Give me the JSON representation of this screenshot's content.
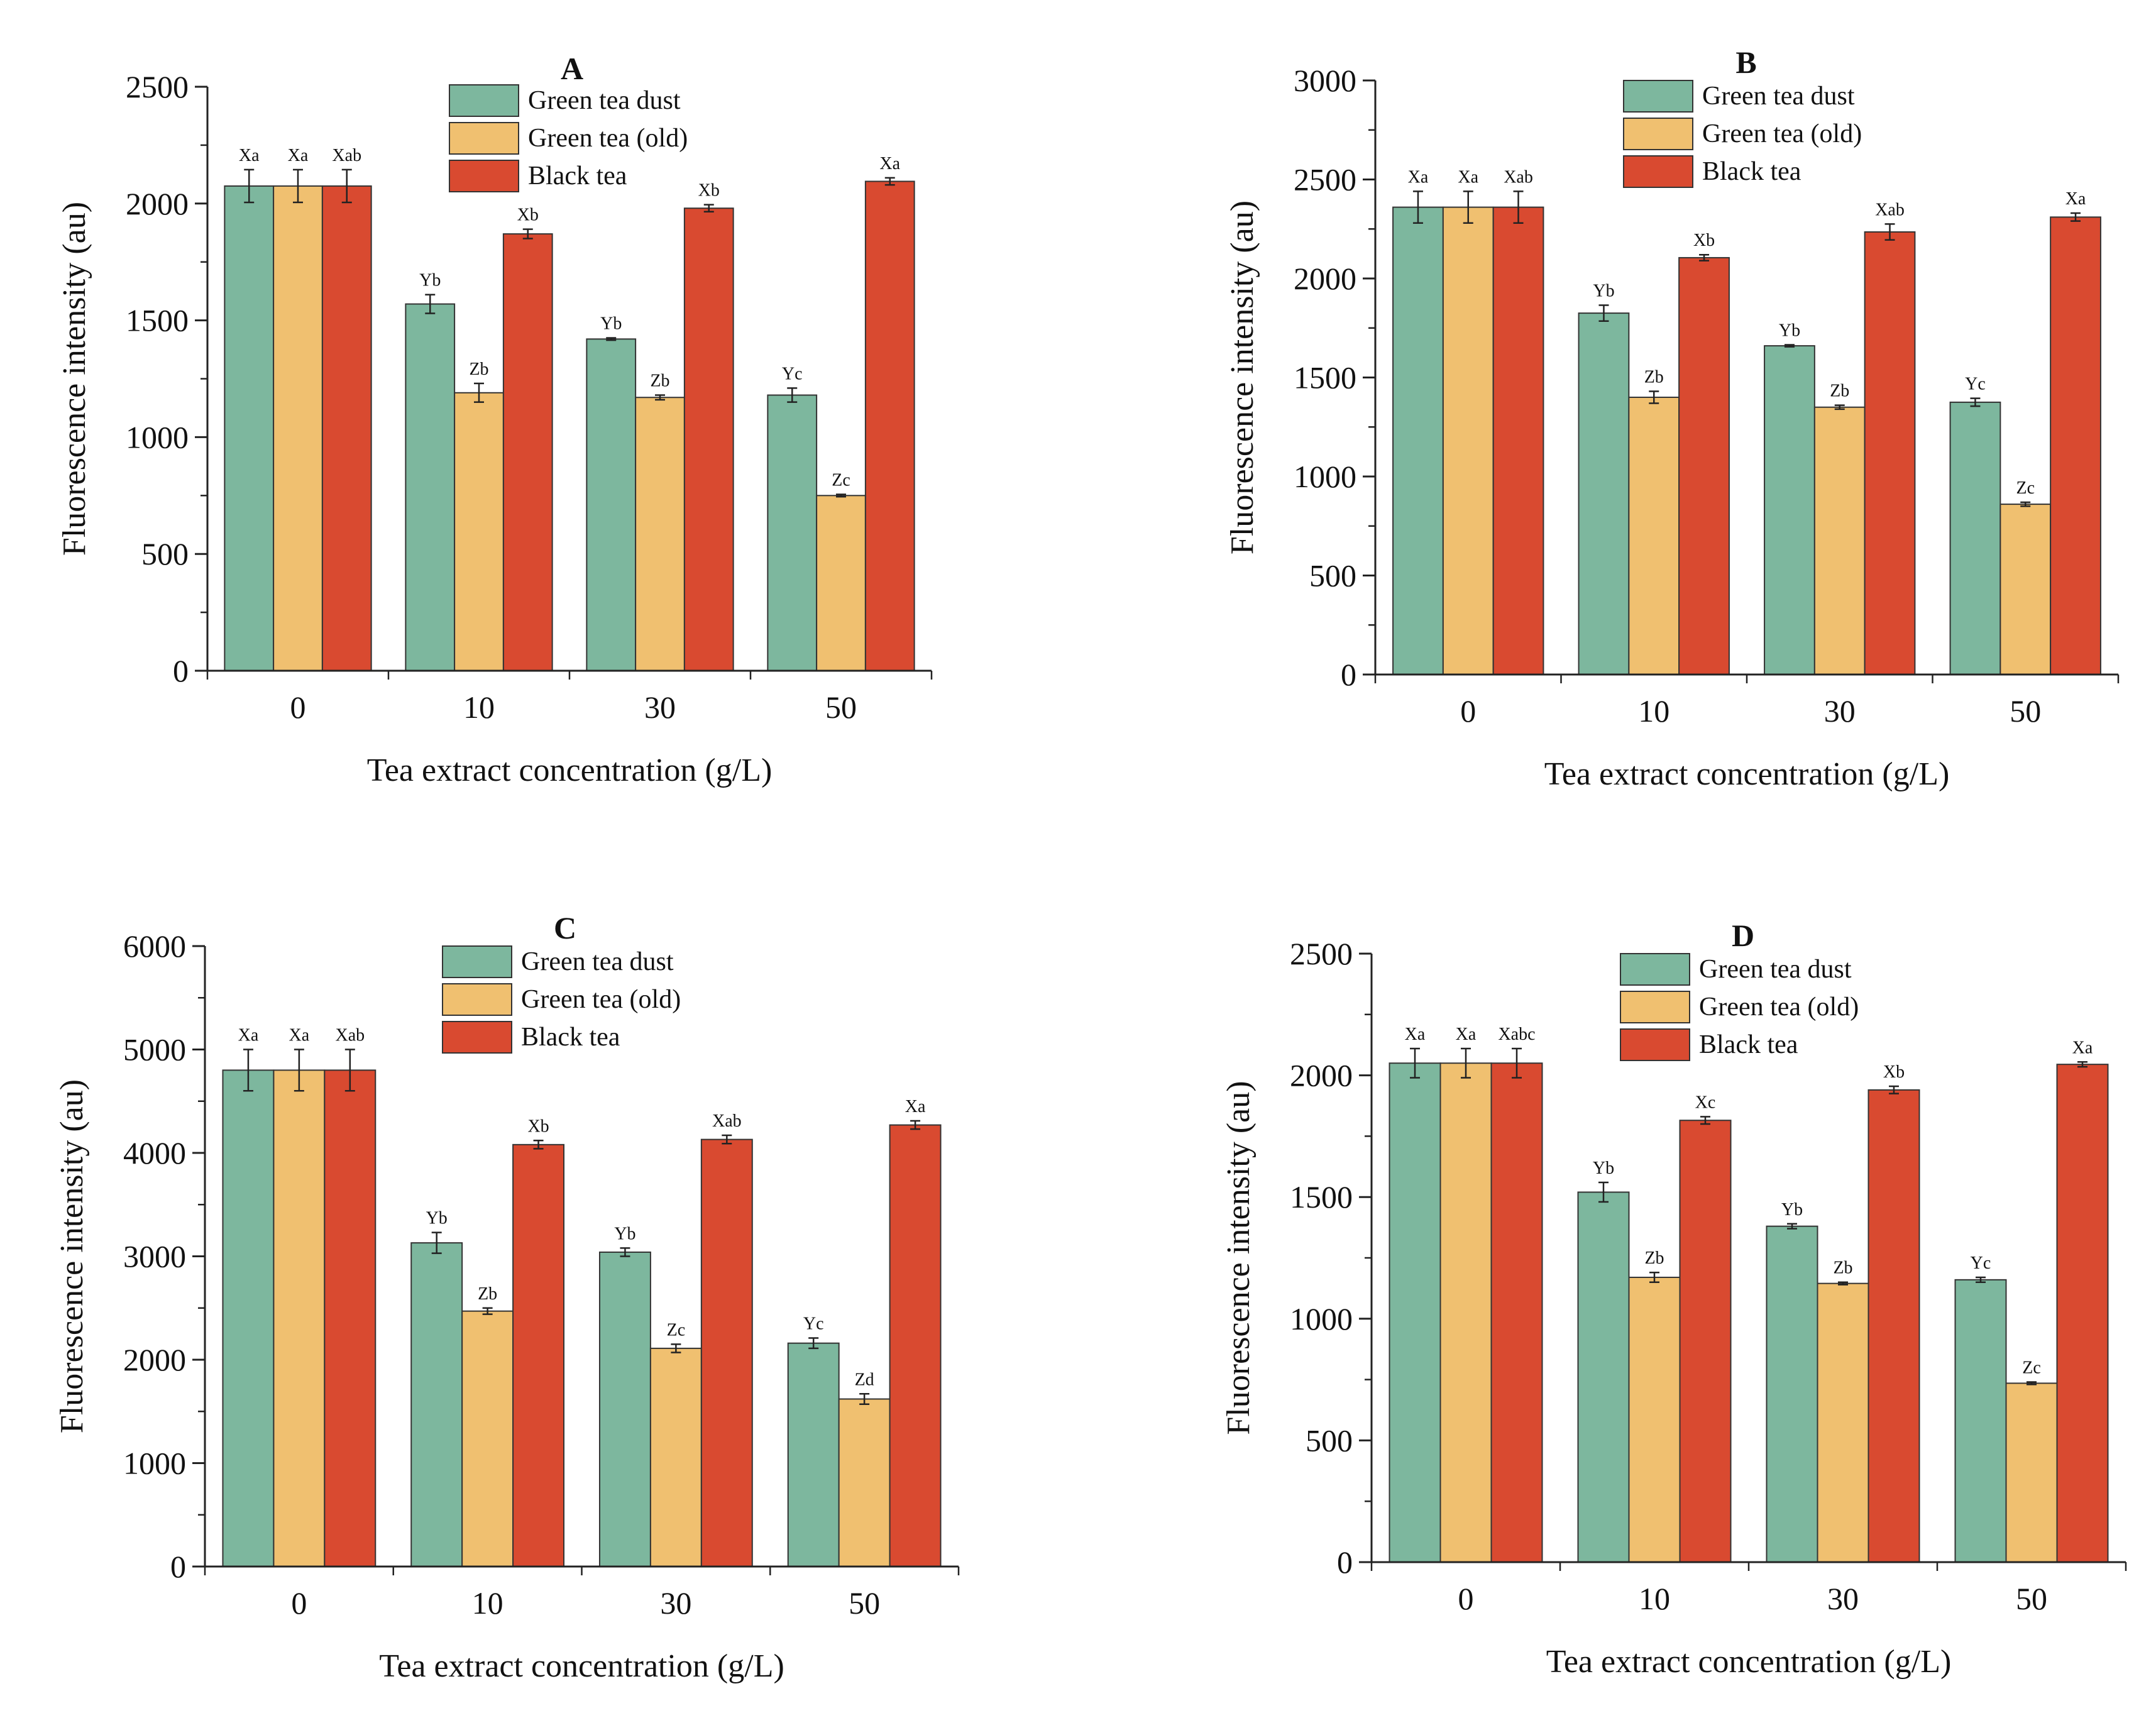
{
  "chart_data": [
    {
      "type": "bar",
      "title": "A",
      "xlabel": "Tea extract concentration (g/L)",
      "ylabel": "Fluorescence intensity (au)",
      "categories": [
        "0",
        "10",
        "30",
        "50"
      ],
      "ylim": [
        0,
        2500
      ],
      "yticks": [
        0,
        500,
        1000,
        1500,
        2000,
        2500
      ],
      "legend": "top-center",
      "series": [
        {
          "name": "Green tea dust",
          "color": "#7db79e",
          "values": [
            2075,
            1570,
            1420,
            1180
          ],
          "errors": [
            70,
            40,
            5,
            30
          ],
          "labels": [
            "Xa",
            "Yb",
            "Yb",
            "Yc"
          ]
        },
        {
          "name": "Green tea (old)",
          "color": "#f0c070",
          "values": [
            2075,
            1190,
            1170,
            750
          ],
          "errors": [
            70,
            40,
            10,
            5
          ],
          "labels": [
            "Xa",
            "Zb",
            "Zb",
            "Zc"
          ]
        },
        {
          "name": "Black tea",
          "color": "#d94a30",
          "values": [
            2075,
            1870,
            1980,
            2095
          ],
          "errors": [
            70,
            20,
            15,
            15
          ],
          "labels": [
            "Xab",
            "Xb",
            "Xb",
            "Xa"
          ]
        }
      ]
    },
    {
      "type": "bar",
      "title": "B",
      "xlabel": "Tea extract concentration (g/L)",
      "ylabel": "Fluorescence intensity (au)",
      "categories": [
        "0",
        "10",
        "30",
        "50"
      ],
      "ylim": [
        0,
        3000
      ],
      "yticks": [
        0,
        500,
        1000,
        1500,
        2000,
        2500,
        3000
      ],
      "legend": "top-center",
      "series": [
        {
          "name": "Green tea dust",
          "color": "#7db79e",
          "values": [
            2360,
            1825,
            1660,
            1375
          ],
          "errors": [
            80,
            40,
            5,
            20
          ],
          "labels": [
            "Xa",
            "Yb",
            "Yb",
            "Yc"
          ]
        },
        {
          "name": "Green tea (old)",
          "color": "#f0c070",
          "values": [
            2360,
            1400,
            1350,
            860
          ],
          "errors": [
            80,
            30,
            10,
            10
          ],
          "labels": [
            "Xa",
            "Zb",
            "Zb",
            "Zc"
          ]
        },
        {
          "name": "Black tea",
          "color": "#d94a30",
          "values": [
            2360,
            2105,
            2235,
            2310
          ],
          "errors": [
            80,
            15,
            40,
            20
          ],
          "labels": [
            "Xab",
            "Xb",
            "Xab",
            "Xa"
          ]
        }
      ]
    },
    {
      "type": "bar",
      "title": "C",
      "xlabel": "Tea extract concentration (g/L)",
      "ylabel": "Fluorescence intensity (au)",
      "categories": [
        "0",
        "10",
        "30",
        "50"
      ],
      "ylim": [
        0,
        6000
      ],
      "yticks": [
        0,
        1000,
        2000,
        3000,
        4000,
        5000,
        6000
      ],
      "legend": "top-center",
      "series": [
        {
          "name": "Green tea dust",
          "color": "#7db79e",
          "values": [
            4800,
            3130,
            3040,
            2160
          ],
          "errors": [
            200,
            100,
            40,
            50
          ],
          "labels": [
            "Xa",
            "Yb",
            "Yb",
            "Yc"
          ]
        },
        {
          "name": "Green tea (old)",
          "color": "#f0c070",
          "values": [
            4800,
            2470,
            2110,
            1620
          ],
          "errors": [
            200,
            30,
            40,
            50
          ],
          "labels": [
            "Xa",
            "Zb",
            "Zc",
            "Zd"
          ]
        },
        {
          "name": "Black tea",
          "color": "#d94a30",
          "values": [
            4800,
            4080,
            4130,
            4270
          ],
          "errors": [
            200,
            40,
            40,
            40
          ],
          "labels": [
            "Xab",
            "Xb",
            "Xab",
            "Xa"
          ]
        }
      ]
    },
    {
      "type": "bar",
      "title": "D",
      "xlabel": "Tea extract concentration (g/L)",
      "ylabel": "Fluorescence intensity (au)",
      "categories": [
        "0",
        "10",
        "30",
        "50"
      ],
      "ylim": [
        0,
        2500
      ],
      "yticks": [
        0,
        500,
        1000,
        1500,
        2000,
        2500
      ],
      "legend": "top-center",
      "series": [
        {
          "name": "Green tea dust",
          "color": "#7db79e",
          "values": [
            2050,
            1520,
            1380,
            1160
          ],
          "errors": [
            60,
            40,
            10,
            10
          ],
          "labels": [
            "Xa",
            "Yb",
            "Yb",
            "Yc"
          ]
        },
        {
          "name": "Green tea (old)",
          "color": "#f0c070",
          "values": [
            2050,
            1170,
            1145,
            735
          ],
          "errors": [
            60,
            20,
            5,
            5
          ],
          "labels": [
            "Xa",
            "Zb",
            "Zb",
            "Zc"
          ]
        },
        {
          "name": "Black tea",
          "color": "#d94a30",
          "values": [
            2050,
            1815,
            1940,
            2045
          ],
          "errors": [
            60,
            15,
            15,
            10
          ],
          "labels": [
            "Xabc",
            "Xc",
            "Xb",
            "Xa"
          ]
        }
      ]
    }
  ]
}
